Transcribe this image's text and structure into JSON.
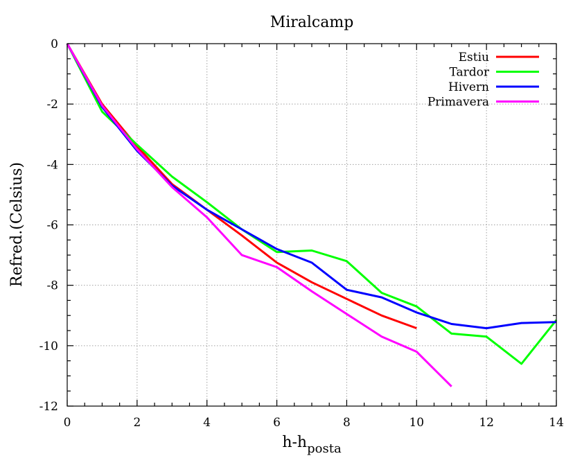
{
  "chart_data": {
    "type": "line",
    "title": "Miralcamp",
    "xlabel": "h-h",
    "xlabel_sub": "posta",
    "ylabel": "Refred.(Celsius)",
    "xlim": [
      0,
      14
    ],
    "ylim": [
      -12,
      0
    ],
    "x_ticks": [
      0,
      2,
      4,
      6,
      8,
      10,
      12,
      14
    ],
    "y_ticks": [
      0,
      -2,
      -4,
      -6,
      -8,
      -10,
      -12
    ],
    "x_tick_labels": [
      "0",
      "2",
      "4",
      "6",
      "8",
      "10",
      "12",
      "14"
    ],
    "y_tick_labels": [
      "0",
      "-2",
      "-4",
      "-6",
      "-8",
      "-10",
      "-12"
    ],
    "grid": true,
    "legend_position": "top-right",
    "series": [
      {
        "name": "Estiu",
        "color": "#ff0000",
        "x": [
          0,
          1,
          2,
          3,
          4,
          5,
          6,
          7,
          8,
          9,
          10
        ],
        "y": [
          0,
          -2.0,
          -3.4,
          -4.65,
          -5.5,
          -6.35,
          -7.25,
          -7.9,
          -8.45,
          -9.0,
          -9.42
        ]
      },
      {
        "name": "Tardor",
        "color": "#00ff00",
        "x": [
          0,
          1,
          2,
          3,
          4,
          5,
          6,
          7,
          8,
          9,
          10,
          11,
          12,
          13,
          14
        ],
        "y": [
          0,
          -2.25,
          -3.35,
          -4.4,
          -5.25,
          -6.15,
          -6.9,
          -6.85,
          -7.2,
          -8.25,
          -8.7,
          -9.6,
          -9.7,
          -10.6,
          -9.15
        ]
      },
      {
        "name": "Hivern",
        "color": "#0000ff",
        "x": [
          0,
          1,
          2,
          3,
          4,
          5,
          6,
          7,
          8,
          9,
          10,
          11,
          12,
          13,
          14
        ],
        "y": [
          0,
          -2.1,
          -3.55,
          -4.7,
          -5.5,
          -6.15,
          -6.8,
          -7.25,
          -8.15,
          -8.4,
          -8.9,
          -9.28,
          -9.42,
          -9.25,
          -9.22
        ]
      },
      {
        "name": "Primavera",
        "color": "#ff00ff",
        "x": [
          0,
          1,
          2,
          3,
          4,
          5,
          6,
          7,
          8,
          9,
          10,
          11
        ],
        "y": [
          0,
          -2.05,
          -3.5,
          -4.75,
          -5.75,
          -7.0,
          -7.4,
          -8.2,
          -8.95,
          -9.7,
          -10.2,
          -11.35
        ]
      }
    ]
  }
}
